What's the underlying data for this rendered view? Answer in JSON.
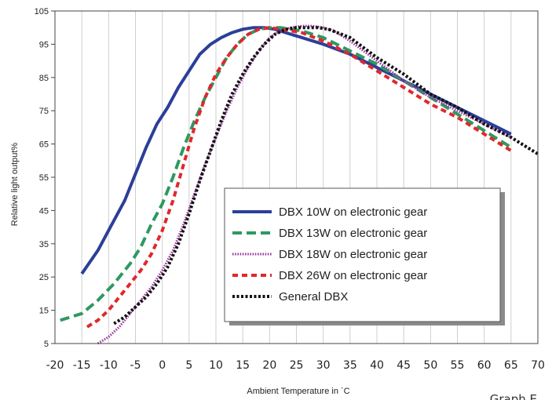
{
  "chart_data": {
    "type": "line",
    "title": "",
    "xlabel": "Ambient Temperature in ˋC",
    "ylabel": "Relative light output%",
    "caption": "Graph E",
    "xlim": [
      -20,
      70
    ],
    "ylim": [
      5,
      105
    ],
    "x_ticks": [
      "-20",
      "-15",
      "-10",
      "-5",
      "0",
      "5",
      "10",
      "15",
      "20",
      "25",
      "30",
      "35",
      "40",
      "45",
      "50",
      "55",
      "60",
      "65",
      "70"
    ],
    "y_ticks": [
      "5",
      "15",
      "25",
      "35",
      "45",
      "55",
      "65",
      "75",
      "85",
      "95",
      "105"
    ],
    "grid": "vertical",
    "legend_position": "center-right",
    "series": [
      {
        "name": "DBX 10W on electronic gear",
        "color": "#2b3f99",
        "style": "solid",
        "points": [
          [
            -15,
            26
          ],
          [
            -12,
            33
          ],
          [
            -10,
            39
          ],
          [
            -7,
            48
          ],
          [
            -5,
            56
          ],
          [
            -3,
            64
          ],
          [
            -1,
            71
          ],
          [
            1,
            76
          ],
          [
            3,
            82
          ],
          [
            5,
            87
          ],
          [
            7,
            92
          ],
          [
            9,
            95
          ],
          [
            11,
            97
          ],
          [
            13,
            98.5
          ],
          [
            15,
            99.5
          ],
          [
            17,
            100
          ],
          [
            19,
            100
          ],
          [
            21,
            99.5
          ],
          [
            23,
            98.5
          ],
          [
            25,
            97.5
          ],
          [
            30,
            95
          ],
          [
            35,
            92
          ],
          [
            40,
            88
          ],
          [
            45,
            84
          ],
          [
            50,
            80
          ],
          [
            55,
            76
          ],
          [
            60,
            72
          ],
          [
            65,
            68
          ]
        ]
      },
      {
        "name": "DBX 13W on electronic gear",
        "color": "#2e9960",
        "style": "dashed",
        "points": [
          [
            -19,
            12
          ],
          [
            -15,
            14
          ],
          [
            -12,
            18
          ],
          [
            -9,
            23
          ],
          [
            -6,
            29
          ],
          [
            -4,
            34
          ],
          [
            -2,
            41
          ],
          [
            0,
            47
          ],
          [
            2,
            55
          ],
          [
            4,
            64
          ],
          [
            6,
            72
          ],
          [
            8,
            79
          ],
          [
            10,
            85
          ],
          [
            12,
            91
          ],
          [
            14,
            95
          ],
          [
            16,
            98
          ],
          [
            18,
            99.5
          ],
          [
            20,
            100
          ],
          [
            22,
            100
          ],
          [
            24,
            99.5
          ],
          [
            26,
            99
          ],
          [
            30,
            97
          ],
          [
            35,
            93
          ],
          [
            40,
            89
          ],
          [
            45,
            84
          ],
          [
            50,
            79
          ],
          [
            55,
            74
          ],
          [
            60,
            69
          ],
          [
            65,
            64
          ]
        ]
      },
      {
        "name": "DBX 18W on electronic gear",
        "color": "#9a3a9c",
        "style": "dotted",
        "points": [
          [
            -12,
            5
          ],
          [
            -10,
            7
          ],
          [
            -8,
            10
          ],
          [
            -6,
            14
          ],
          [
            -4,
            18
          ],
          [
            -2,
            22
          ],
          [
            0,
            27
          ],
          [
            2,
            33
          ],
          [
            4,
            41
          ],
          [
            6,
            50
          ],
          [
            8,
            59
          ],
          [
            10,
            67
          ],
          [
            12,
            75
          ],
          [
            14,
            82
          ],
          [
            16,
            88
          ],
          [
            18,
            93
          ],
          [
            20,
            97
          ],
          [
            22,
            99
          ],
          [
            24,
            100
          ],
          [
            26,
            100.5
          ],
          [
            28,
            100.5
          ],
          [
            30,
            100
          ],
          [
            32,
            99
          ],
          [
            35,
            96
          ],
          [
            40,
            90
          ],
          [
            45,
            84
          ],
          [
            50,
            79
          ],
          [
            55,
            75
          ],
          [
            60,
            71
          ],
          [
            65,
            67
          ]
        ]
      },
      {
        "name": "DBX 26W on electronic gear",
        "color": "#e0282c",
        "style": "dashed",
        "points": [
          [
            -14,
            10
          ],
          [
            -12,
            12
          ],
          [
            -10,
            15
          ],
          [
            -8,
            19
          ],
          [
            -6,
            23
          ],
          [
            -4,
            27
          ],
          [
            -2,
            32
          ],
          [
            0,
            39
          ],
          [
            2,
            48
          ],
          [
            4,
            59
          ],
          [
            6,
            70
          ],
          [
            8,
            79
          ],
          [
            10,
            86
          ],
          [
            12,
            91
          ],
          [
            14,
            95
          ],
          [
            16,
            98
          ],
          [
            18,
            99.5
          ],
          [
            20,
            100
          ],
          [
            22,
            99.5
          ],
          [
            24,
            99
          ],
          [
            26,
            98.5
          ],
          [
            30,
            96
          ],
          [
            35,
            92
          ],
          [
            40,
            87
          ],
          [
            45,
            82
          ],
          [
            50,
            77
          ],
          [
            55,
            73
          ],
          [
            60,
            68
          ],
          [
            65,
            63
          ]
        ]
      },
      {
        "name": "General DBX",
        "color": "#111111",
        "style": "dotted",
        "points": [
          [
            -9,
            11
          ],
          [
            -7,
            13
          ],
          [
            -5,
            16
          ],
          [
            -3,
            19
          ],
          [
            -1,
            23
          ],
          [
            1,
            28
          ],
          [
            3,
            35
          ],
          [
            5,
            44
          ],
          [
            7,
            54
          ],
          [
            9,
            63
          ],
          [
            11,
            72
          ],
          [
            13,
            80
          ],
          [
            15,
            86
          ],
          [
            17,
            91
          ],
          [
            19,
            95
          ],
          [
            21,
            98
          ],
          [
            23,
            99.5
          ],
          [
            25,
            100
          ],
          [
            27,
            100
          ],
          [
            29,
            100
          ],
          [
            31,
            99.5
          ],
          [
            35,
            97
          ],
          [
            40,
            91
          ],
          [
            45,
            86
          ],
          [
            50,
            80
          ],
          [
            55,
            76
          ],
          [
            60,
            71
          ],
          [
            65,
            67
          ],
          [
            70,
            62
          ]
        ]
      }
    ]
  }
}
